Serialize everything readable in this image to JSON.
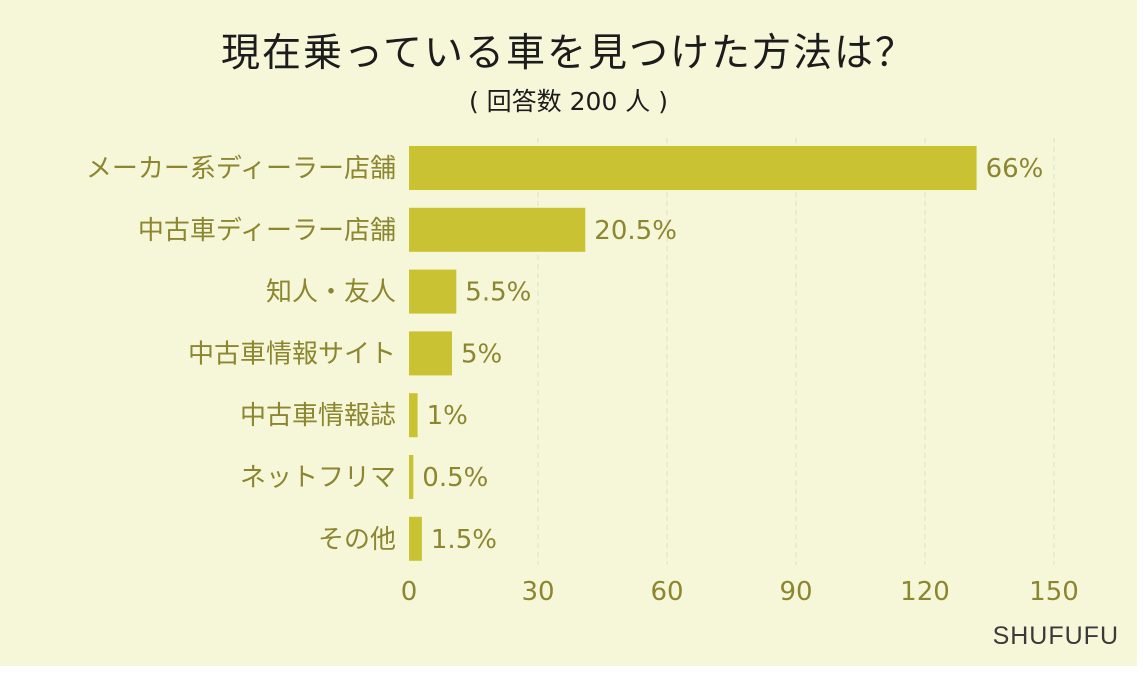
{
  "title": "現在乗っている車を見つけた方法は？",
  "subtitle": "( 回答数 200 人 )",
  "brand": "SHUFUFU",
  "colors": {
    "bar": "#c9c233",
    "label": "#8c8630",
    "grid": "#dedfc6",
    "background": "#f6f7d9"
  },
  "chart_data": {
    "type": "bar",
    "orientation": "horizontal",
    "categories": [
      "メーカー系ディーラー店舗",
      "中古車ディーラー店舗",
      "知人・友人",
      "中古車情報サイト",
      "中古車情報誌",
      "ネットフリマ",
      "その他"
    ],
    "values": [
      132,
      41,
      11,
      10,
      2,
      1,
      3
    ],
    "data_labels": [
      "66%",
      "20.5%",
      "5.5%",
      "5%",
      "1%",
      "0.5%",
      "1.5%"
    ],
    "xlim": [
      0,
      150
    ],
    "xticks": [
      0,
      30,
      60,
      90,
      120,
      150
    ],
    "grid": "vertical dashed",
    "legend": "none"
  }
}
